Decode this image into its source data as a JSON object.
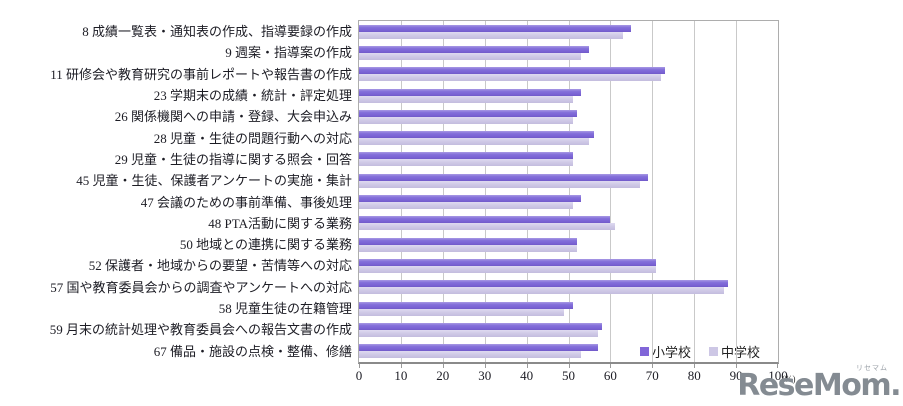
{
  "chart_data": {
    "type": "bar",
    "orientation": "horizontal",
    "title": "",
    "xlabel": "",
    "ylabel": "",
    "unit_label": "(%)",
    "xlim": [
      0,
      100
    ],
    "x_ticks": [
      0,
      10,
      20,
      30,
      40,
      50,
      60,
      70,
      80,
      90,
      100
    ],
    "grid": true,
    "legend_position": "inside-bottom-right",
    "categories": [
      "8 成績一覧表・通知表の作成、指導要録の作成",
      "9 週案・指導案の作成",
      "11 研修会や教育研究の事前レポートや報告書の作成",
      "23 学期末の成績・統計・評定処理",
      "26 関係機関への申請・登録、大会申込み",
      "28 児童・生徒の問題行動への対応",
      "29 児童・生徒の指導に関する照会・回答",
      "45 児童・生徒、保護者アンケートの実施・集計",
      "47 会議のための事前準備、事後処理",
      "48 PTA活動に関する業務",
      "50 地域との連携に関する業務",
      "52 保護者・地域からの要望・苦情等への対応",
      "57 国や教育委員会からの調査やアンケートへの対応",
      "58 児童生徒の在籍管理",
      "59 月末の統計処理や教育委員会への報告文書の作成",
      "67 備品・施設の点検・整備、修繕"
    ],
    "series": [
      {
        "name": "小学校",
        "color": "#8166d8",
        "values": [
          65,
          55,
          73,
          53,
          52,
          56,
          51,
          69,
          53,
          60,
          52,
          71,
          88,
          51,
          58,
          57
        ]
      },
      {
        "name": "中学校",
        "color": "#cdc7e5",
        "values": [
          63,
          53,
          72,
          51,
          51,
          55,
          51,
          67,
          51,
          61,
          52,
          71,
          87,
          49,
          57,
          53
        ]
      }
    ]
  },
  "colors": {
    "gridline": "#c9c9c9",
    "plot_border": "#adadad",
    "axis_line": "#8a8a8a",
    "text": "#1c1c24"
  },
  "watermark": {
    "text": "ReseMom.",
    "ruby": "リセマム"
  }
}
